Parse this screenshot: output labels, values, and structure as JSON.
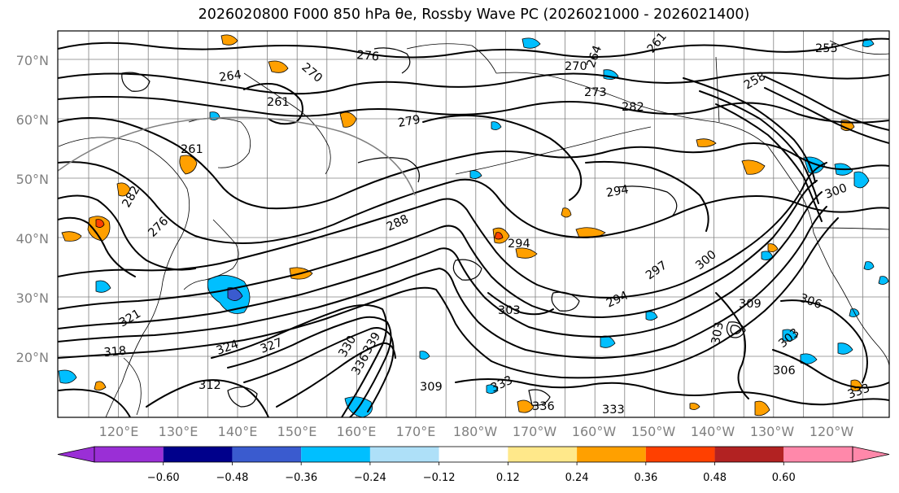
{
  "title_text": "2026020800 F000 850 hPa θe, Rossby Wave PC (2026021000 - 2026021400)",
  "lat_labels": [
    "70°N",
    "60°N",
    "50°N",
    "40°N",
    "30°N",
    "20°N"
  ],
  "lon_labels": [
    "120°E",
    "130°E",
    "140°E",
    "150°E",
    "160°E",
    "170°E",
    "180°W",
    "170°W",
    "160°W",
    "150°W",
    "140°W",
    "130°W",
    "120°W"
  ],
  "contour_labels": [
    "276",
    "270",
    "264",
    "261",
    "279",
    "264",
    "261",
    "258",
    "273",
    "282",
    "261",
    "294",
    "288",
    "294",
    "294",
    "297",
    "300",
    "303",
    "306",
    "303",
    "309",
    "303",
    "306",
    "300",
    "318",
    "321",
    "324",
    "327",
    "330",
    "336",
    "339",
    "333",
    "333",
    "336",
    "333",
    "255",
    "270",
    "309",
    "312",
    "276",
    "282"
  ],
  "colorbar": {
    "colors": [
      "#9a2fd6",
      "#00008b",
      "#3a5bcf",
      "#00bfff",
      "#aee0f8",
      "#ffffff",
      "#ffe88a",
      "#ffa000",
      "#ff4000",
      "#b22222",
      "#ff88aa"
    ],
    "tick_labels": [
      "−0.60",
      "−0.48",
      "−0.36",
      "−0.24",
      "−0.12",
      "0.12",
      "0.24",
      "0.36",
      "0.48",
      "0.60"
    ]
  },
  "colors": {
    "contour": "#000000",
    "coastline": "#000000",
    "gridline": "#808080",
    "tick_label": "#808080"
  }
}
